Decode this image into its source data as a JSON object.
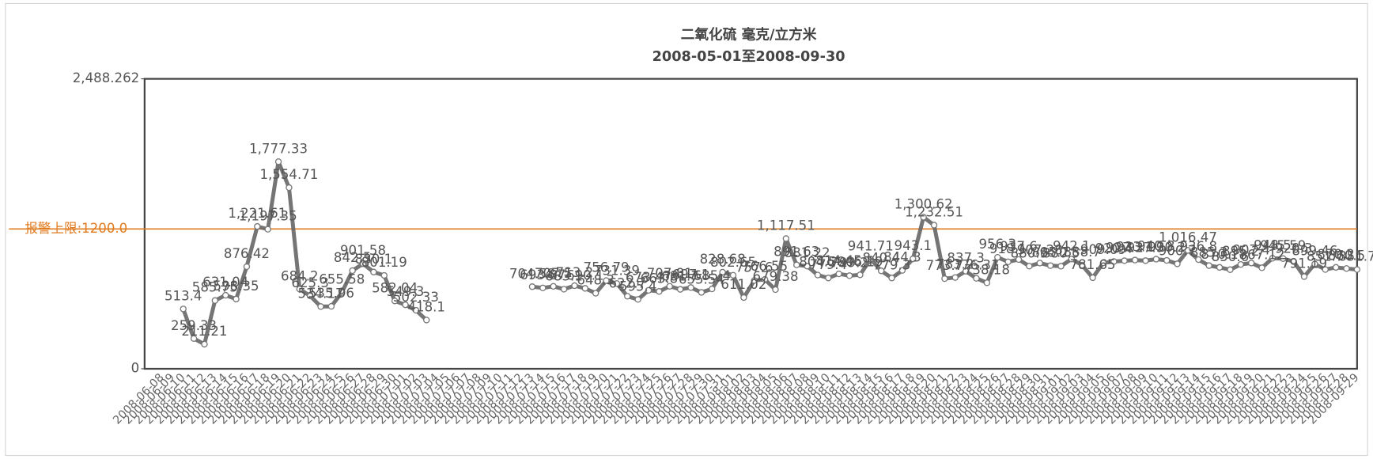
{
  "chart_data": {
    "type": "line",
    "title": "二氧化硫 毫克/立方米",
    "subtitle": "2008-05-01至2008-09-30",
    "color": "#666666",
    "ylim": [
      0,
      2488.262
    ],
    "yticks": [
      0,
      {
        "value": 2488.262,
        "label": "2,488.262"
      }
    ],
    "threshold": {
      "value": 1200,
      "label": "报警上限:1200.0",
      "color": "#e07b20"
    },
    "categories": [
      "2008-06-08",
      "2008-06-09",
      "2008-06-10",
      "2008-06-11",
      "2008-06-12",
      "2008-06-13",
      "2008-06-14",
      "2008-06-15",
      "2008-06-16",
      "2008-06-17",
      "2008-06-18",
      "2008-06-19",
      "2008-06-20",
      "2008-06-21",
      "2008-06-22",
      "2008-06-23",
      "2008-06-24",
      "2008-06-25",
      "2008-06-26",
      "2008-06-27",
      "2008-06-28",
      "2008-06-29",
      "2008-06-30",
      "2008-07-01",
      "2008-07-02",
      "2008-07-03",
      "2008-07-04",
      "2008-07-05",
      "2008-07-06",
      "2008-07-07",
      "2008-07-08",
      "2008-07-09",
      "2008-07-10",
      "2008-07-11",
      "2008-07-12",
      "2008-07-13",
      "2008-07-14",
      "2008-07-15",
      "2008-07-16",
      "2008-07-17",
      "2008-07-18",
      "2008-07-19",
      "2008-07-20",
      "2008-07-21",
      "2008-07-22",
      "2008-07-23",
      "2008-07-24",
      "2008-07-25",
      "2008-07-26",
      "2008-07-27",
      "2008-07-28",
      "2008-07-29",
      "2008-07-30",
      "2008-07-31",
      "2008-08-01",
      "2008-08-02",
      "2008-08-03",
      "2008-08-04",
      "2008-08-05",
      "2008-08-06",
      "2008-08-07",
      "2008-08-08",
      "2008-08-09",
      "2008-08-10",
      "2008-08-11",
      "2008-08-12",
      "2008-08-13",
      "2008-08-14",
      "2008-08-15",
      "2008-08-16",
      "2008-08-17",
      "2008-08-18",
      "2008-08-19",
      "2008-08-20",
      "2008-08-21",
      "2008-08-22",
      "2008-08-23",
      "2008-08-24",
      "2008-08-25",
      "2008-08-26",
      "2008-08-27",
      "2008-08-28",
      "2008-08-29",
      "2008-08-30",
      "2008-08-31",
      "2008-09-01",
      "2008-09-02",
      "2008-09-03",
      "2008-09-04",
      "2008-09-05",
      "2008-09-06",
      "2008-09-07",
      "2008-09-08",
      "2008-09-09",
      "2008-09-10",
      "2008-09-11",
      "2008-09-12",
      "2008-09-13",
      "2008-09-14",
      "2008-09-15",
      "2008-09-16",
      "2008-09-17",
      "2008-09-18",
      "2008-09-19",
      "2008-09-20",
      "2008-09-21",
      "2008-09-22",
      "2008-09-23",
      "2008-09-24",
      "2008-09-25",
      "2008-09-26",
      "2008-09-27",
      "2008-09-28",
      "2008-09-29"
    ],
    "values": [
      null,
      null,
      513.4,
      259.33,
      211.21,
      585.75,
      631.04,
      598.35,
      876.42,
      1221.61,
      1197.35,
      1777.33,
      1554.71,
      684.2,
      625.3,
      534.17,
      535.96,
      655.58,
      842.5,
      901.58,
      830.1,
      801.19,
      582.04,
      549.3,
      502.33,
      418.1,
      null,
      null,
      null,
      null,
      null,
      null,
      null,
      null,
      null,
      704.58,
      693.87,
      707.5,
      683.1,
      713.2,
      690.1,
      648.3,
      756.79,
      731.39,
      622.7,
      595.4,
      673.47,
      663.8,
      707.81,
      681.7,
      697.1,
      655.54,
      685.4,
      828.68,
      802.65,
      611.02,
      757.6,
      766.55,
      679.38,
      1117.51,
      891.63,
      881.22,
      804.5,
      779.4,
      814.45,
      799.2,
      806.19,
      941.71,
      840.4,
      779.3,
      844.3,
      943.1,
      1300.62,
      1232.51,
      773.7,
      783.2,
      837.3,
      776.31,
      738.18,
      956.3,
      918.1,
      937.6,
      880.9,
      907.28,
      885.2,
      880.5,
      942.1,
      888.7,
      781.65,
      909.09,
      920.4,
      927.3,
      933.1,
      927.9,
      940.8,
      930.2,
      900.7,
      1016.47,
      936.8,
      885.3,
      870.1,
      850.6,
      895.2,
      907.4,
      867.12,
      948.5,
      945.59,
      920.3,
      791.19,
      899.46,
      851.7,
      870.2,
      860.5,
      851.7
    ],
    "value_labels": [
      null,
      null,
      "513.4",
      "259.33",
      "211.21",
      "585.75",
      "631.04",
      "598.35",
      "876.42",
      "1,221.61",
      "1,197.35",
      "1,777.33",
      "1,554.71",
      "684.2",
      "625.3",
      "534.17",
      "535.96",
      "655.58",
      "842.5",
      "901.58",
      "830.1",
      "801.19",
      "582.04",
      "549.3",
      "502.33",
      "418.1",
      null,
      null,
      null,
      null,
      null,
      null,
      null,
      null,
      null,
      "704.58",
      "693.87",
      "707.5",
      "683.1",
      "713.2",
      "690.1",
      "648.3",
      "756.79",
      "731.39",
      "622.7",
      "595.4",
      "673.47",
      "663.8",
      "707.81",
      "681.7",
      "697.1",
      "655.54",
      "685.4",
      "828.68",
      "802.65",
      "611.02",
      "757.6",
      "766.55",
      "679.38",
      "1,117.51",
      "891.63",
      "881.22",
      "804.5",
      "779.4",
      "814.45",
      "799.2",
      "806.19",
      "941.71",
      "840.4",
      "779.3",
      "844.3",
      "943.1",
      "1,300.62",
      "1,232.51",
      "773.7",
      "783.2",
      "837.3",
      "776.31",
      "738.18",
      "956.3",
      "918.1",
      "937.6",
      "880.9",
      "907.28",
      "885.2",
      "880.5",
      "942.1",
      "888.7",
      "781.65",
      "909.09",
      "920.4",
      "927.3",
      "933.1",
      "927.9",
      "940.8",
      "930.2",
      "900.7",
      "1,016.47",
      "936.8",
      "885.3",
      "870.1",
      "850.6",
      "895.2",
      "907.4",
      "867.12",
      "948.5",
      "945.59",
      "920.3",
      "791.19",
      "899.46",
      "851.7",
      "870.2",
      "860.5",
      "851.7"
    ]
  }
}
